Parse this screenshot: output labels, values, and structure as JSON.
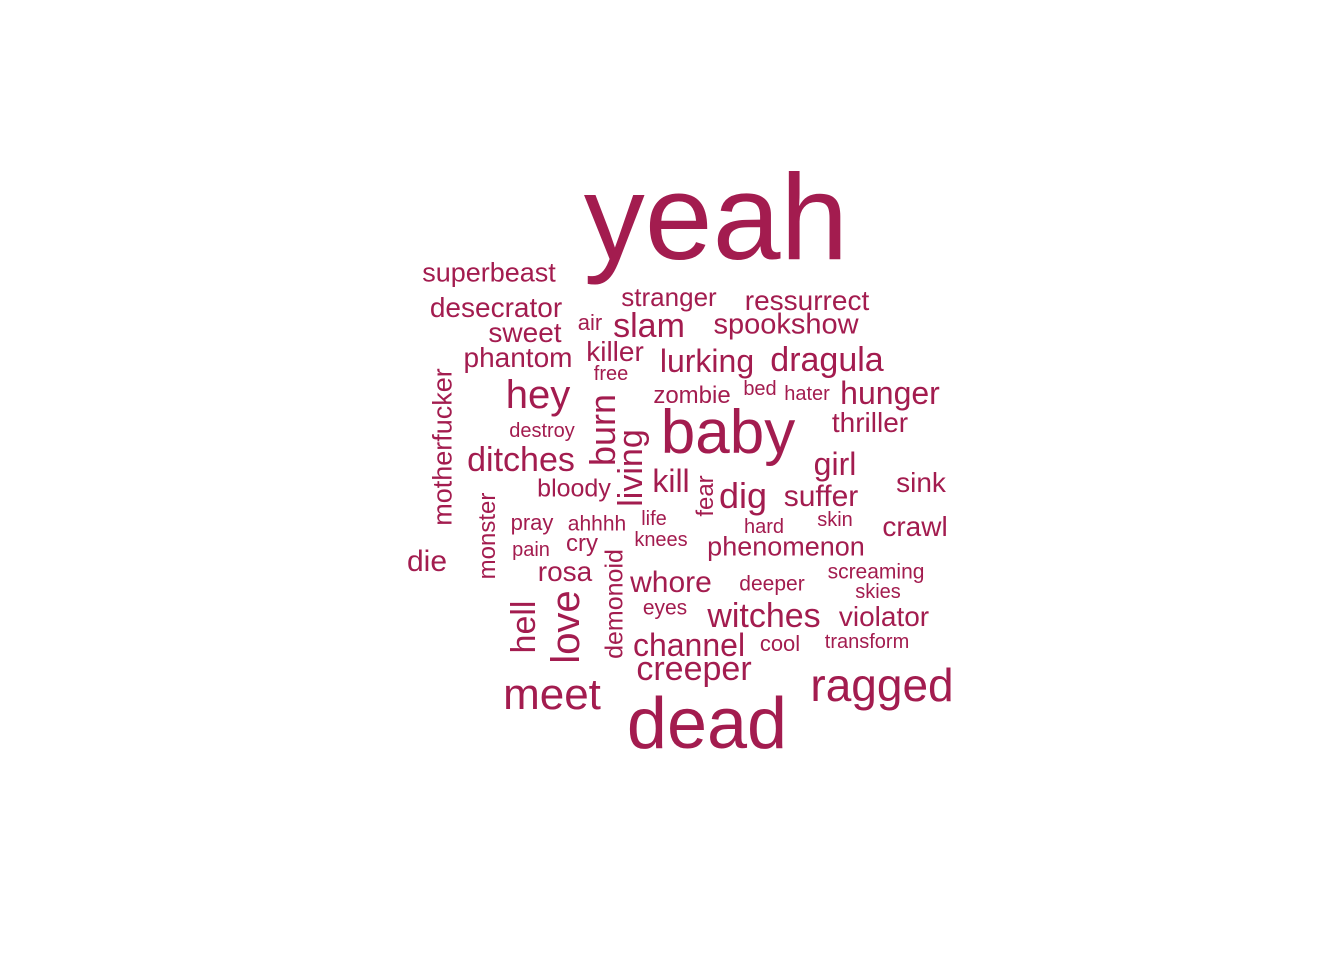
{
  "word_cloud": {
    "color": "#A31C4F",
    "words": [
      "yeah",
      "baby",
      "dead",
      "ragged",
      "meet",
      "love",
      "burn",
      "hey",
      "creeper",
      "witches",
      "channel",
      "dragula",
      "lurking",
      "slam",
      "hunger",
      "ditches",
      "dig",
      "spookshow",
      "ressurrect",
      "desecrator",
      "superbeast",
      "phantom",
      "sweet",
      "killer",
      "stranger",
      "girl",
      "suffer",
      "kill",
      "living",
      "hell",
      "whore",
      "violator",
      "crawl",
      "sink",
      "thriller",
      "phenomenon",
      "rosa",
      "die",
      "motherfucker",
      "bloody",
      "zombie",
      "monster",
      "demonoid",
      "fear",
      "air",
      "free",
      "bed",
      "hater",
      "destroy",
      "pray",
      "ahhhh",
      "life",
      "skin",
      "hard",
      "cry",
      "knees",
      "pain",
      "deeper",
      "screaming",
      "skies",
      "eyes",
      "cool",
      "transform"
    ]
  }
}
